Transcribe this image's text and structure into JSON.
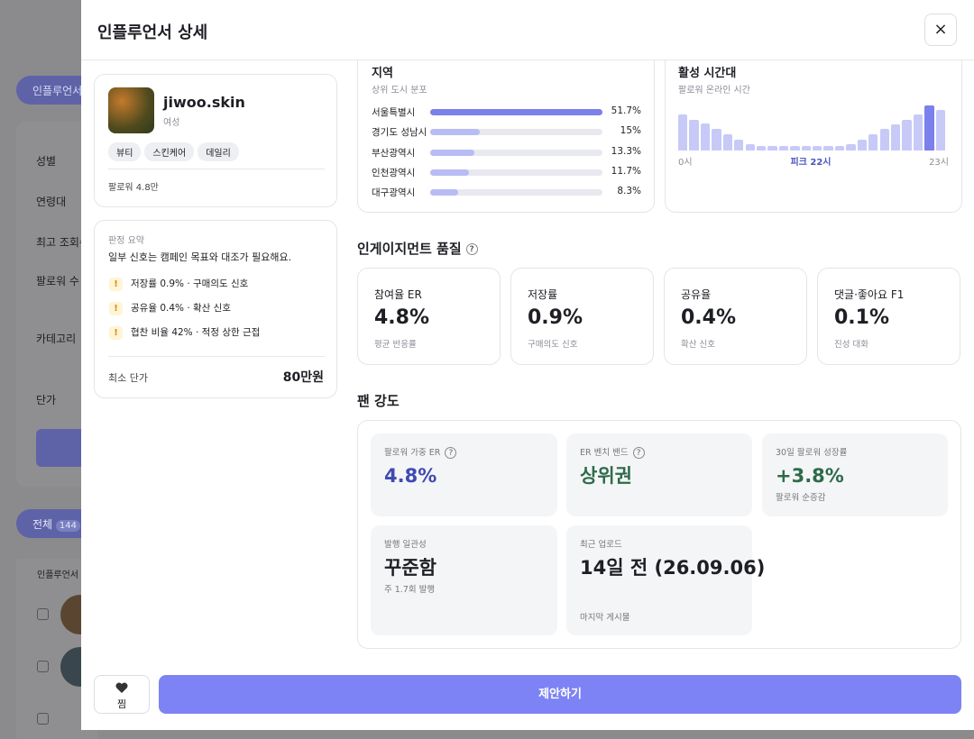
{
  "background": {
    "tab": "인플루언서",
    "filters": [
      "성별",
      "연령대",
      "최고 조회수",
      "팔로워 수",
      "카테고리",
      "단가"
    ],
    "list_tab": "전체",
    "list_count": "144",
    "column": "인플루언서"
  },
  "header": {
    "title": "인플루언서 상세",
    "close": "×"
  },
  "profile": {
    "username": "jiwoo.skin",
    "gender": "여성",
    "tags": [
      "뷰티",
      "스킨케어",
      "데일리"
    ],
    "followers": "팔로워 4.8만"
  },
  "verdict": {
    "title": "판정 요약",
    "summary": "일부 신호는 캠페인 목표와 대조가 필요해요.",
    "icon": "!",
    "items": [
      "저장률 0.9% · 구매의도 신호",
      "공유율 0.4% · 확산 신호",
      "협찬 비율 42% · 적정 상한 근접"
    ],
    "price_label": "최소 단가",
    "price": "80만원"
  },
  "region": {
    "title": "지역",
    "subtitle": "상위 도시 분포",
    "cities": [
      "서울특별시",
      "경기도 성남시",
      "부산광역시",
      "인천광역시",
      "대구광역시"
    ],
    "values": [
      51.7,
      15,
      13.3,
      11.7,
      8.3
    ],
    "value_labels": [
      "51.7%",
      "15%",
      "13.3%",
      "11.7%",
      "8.3%"
    ]
  },
  "activity": {
    "title": "활성 시간대",
    "subtitle": "팔로워 온라인 시간",
    "values": [
      40,
      34,
      30,
      24,
      18,
      12,
      7,
      5,
      5,
      5,
      5,
      5,
      5,
      5,
      5,
      7,
      12,
      18,
      24,
      29,
      34,
      40,
      50,
      45
    ],
    "start_label": "0시",
    "peak_label": "피크 22시",
    "end_label": "23시"
  },
  "engagement": {
    "title": "인게이지먼트 품질",
    "help": "?",
    "cards": [
      {
        "label": "참여율 ER",
        "value": "4.8%",
        "note": "평균 반응률"
      },
      {
        "label": "저장률",
        "value": "0.9%",
        "note": "구매의도 신호"
      },
      {
        "label": "공유율",
        "value": "0.4%",
        "note": "확산 신호"
      },
      {
        "label": "댓글·좋아요 F1",
        "value": "0.1%",
        "note": "진성 대화"
      }
    ]
  },
  "fan_strength": {
    "title": "팬 강도",
    "cards": [
      {
        "label": "팔로워 가중 ER",
        "help": "?",
        "value": "4.8%"
      },
      {
        "label": "ER 벤치 밴드",
        "help": "?",
        "value": "상위권"
      },
      {
        "label": "30일 팔로워 성장률",
        "value": "+3.8%",
        "note": "팔로워 순증감"
      },
      {
        "label": "발행 일관성",
        "value": "꾸준함",
        "note": "주 1.7회 발행"
      },
      {
        "label": "최근 업로드",
        "value": "14일 전 (26.09.06)",
        "note": "마지막 게시물"
      }
    ]
  },
  "footer": {
    "save": "찜",
    "propose": "제안하기"
  }
}
